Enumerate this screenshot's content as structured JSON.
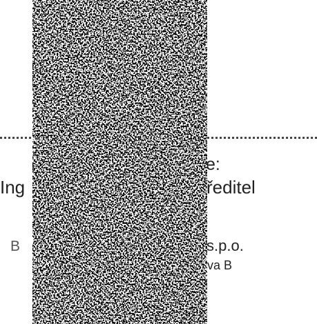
{
  "document": {
    "line1_suffix": "e:",
    "line2_prefix": "Ing",
    "line2_suffix": "ředitel",
    "line3_prefix": "B",
    "line3_suffix": "s.p.o.",
    "line4_suffix": "va B"
  }
}
